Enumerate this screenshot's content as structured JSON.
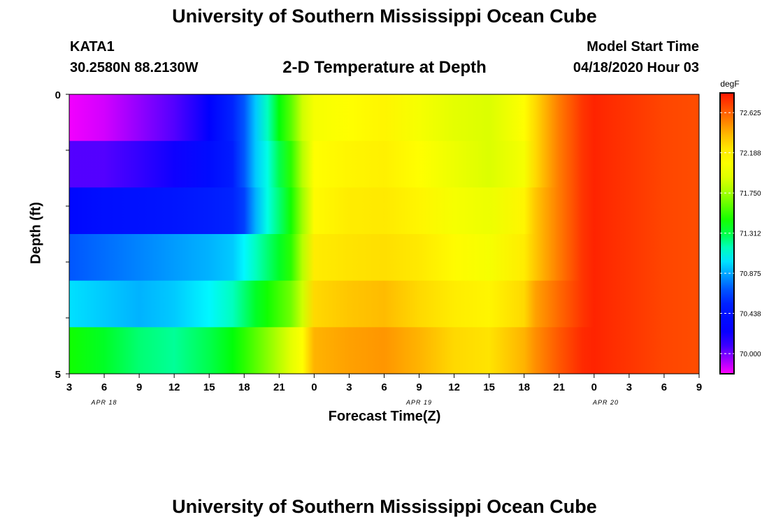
{
  "title_top": "University of Southern Mississippi Ocean Cube",
  "title_bottom": "University of Southern Mississippi Ocean Cube",
  "station": "KATA1",
  "coords": "30.2580N 88.2130W",
  "plot_title": "2-D Temperature at Depth",
  "model_start_label": "Model Start Time",
  "model_start_time": "04/18/2020 Hour 03",
  "chart_data": {
    "type": "heatmap",
    "xlabel": "Forecast Time(Z)",
    "ylabel": "Depth (ft)",
    "x_tick_labels": [
      "3",
      "6",
      "9",
      "12",
      "15",
      "18",
      "21",
      "0",
      "3",
      "6",
      "9",
      "12",
      "15",
      "18",
      "21",
      "0",
      "3",
      "6",
      "9"
    ],
    "date_labels": [
      {
        "text": "APR 18",
        "hour_index": 3
      },
      {
        "text": "APR 19",
        "hour_index": 30
      },
      {
        "text": "APR 20",
        "hour_index": 46
      }
    ],
    "y_tick_labels": [
      "0",
      "5"
    ],
    "ylim": [
      0,
      5
    ],
    "hours_span": 54,
    "depth_levels": [
      0.25,
      1.0,
      2.0,
      3.0,
      4.0,
      4.75
    ],
    "colorbar": {
      "unit": "degF",
      "ticks": [
        "72.625",
        "72.188",
        "71.750",
        "71.312",
        "70.875",
        "70.438",
        "70.000"
      ],
      "min": 69.78,
      "max": 72.84
    },
    "time_hours": [
      0,
      3,
      6,
      9,
      12,
      14,
      15,
      16,
      17,
      18,
      19,
      20,
      21,
      24,
      27,
      30,
      33,
      36,
      39,
      40,
      42,
      44,
      45,
      46,
      48,
      51,
      54
    ],
    "temps_by_depth": [
      [
        69.8,
        69.85,
        69.95,
        70.05,
        70.3,
        70.55,
        70.7,
        70.95,
        71.15,
        71.4,
        71.6,
        71.85,
        72.05,
        72.1,
        72.15,
        72.05,
        71.95,
        71.9,
        72.1,
        72.3,
        72.55,
        72.75,
        72.8,
        72.78,
        72.75,
        72.7,
        72.68
      ],
      [
        70.05,
        70.05,
        70.1,
        70.2,
        70.38,
        70.5,
        70.7,
        70.95,
        71.1,
        71.3,
        71.5,
        71.8,
        72.1,
        72.15,
        72.18,
        72.1,
        72.0,
        71.9,
        72.05,
        72.3,
        72.55,
        72.75,
        72.8,
        72.78,
        72.75,
        72.7,
        72.68
      ],
      [
        70.35,
        70.4,
        70.42,
        70.45,
        70.5,
        70.55,
        70.65,
        70.9,
        71.1,
        71.25,
        71.45,
        71.75,
        72.12,
        72.2,
        72.22,
        72.15,
        72.05,
        72.0,
        72.15,
        72.35,
        72.55,
        72.75,
        72.8,
        72.78,
        72.75,
        72.7,
        72.68
      ],
      [
        70.7,
        70.75,
        70.8,
        70.85,
        70.9,
        70.95,
        71.05,
        71.15,
        71.25,
        71.35,
        71.5,
        71.8,
        72.2,
        72.25,
        72.28,
        72.22,
        72.12,
        72.05,
        72.2,
        72.35,
        72.55,
        72.75,
        72.8,
        72.78,
        72.75,
        72.7,
        72.68
      ],
      [
        71.0,
        70.95,
        70.9,
        70.95,
        71.05,
        71.15,
        71.25,
        71.35,
        71.45,
        71.55,
        71.65,
        71.85,
        72.3,
        72.35,
        72.38,
        72.3,
        72.2,
        72.15,
        72.3,
        72.45,
        72.6,
        72.75,
        72.8,
        72.78,
        72.75,
        72.7,
        72.68
      ],
      [
        71.45,
        71.35,
        71.25,
        71.2,
        71.3,
        71.4,
        71.5,
        71.6,
        71.7,
        71.8,
        71.95,
        72.1,
        72.4,
        72.45,
        72.48,
        72.4,
        72.3,
        72.25,
        72.4,
        72.5,
        72.65,
        72.78,
        72.8,
        72.78,
        72.75,
        72.7,
        72.68
      ]
    ]
  }
}
